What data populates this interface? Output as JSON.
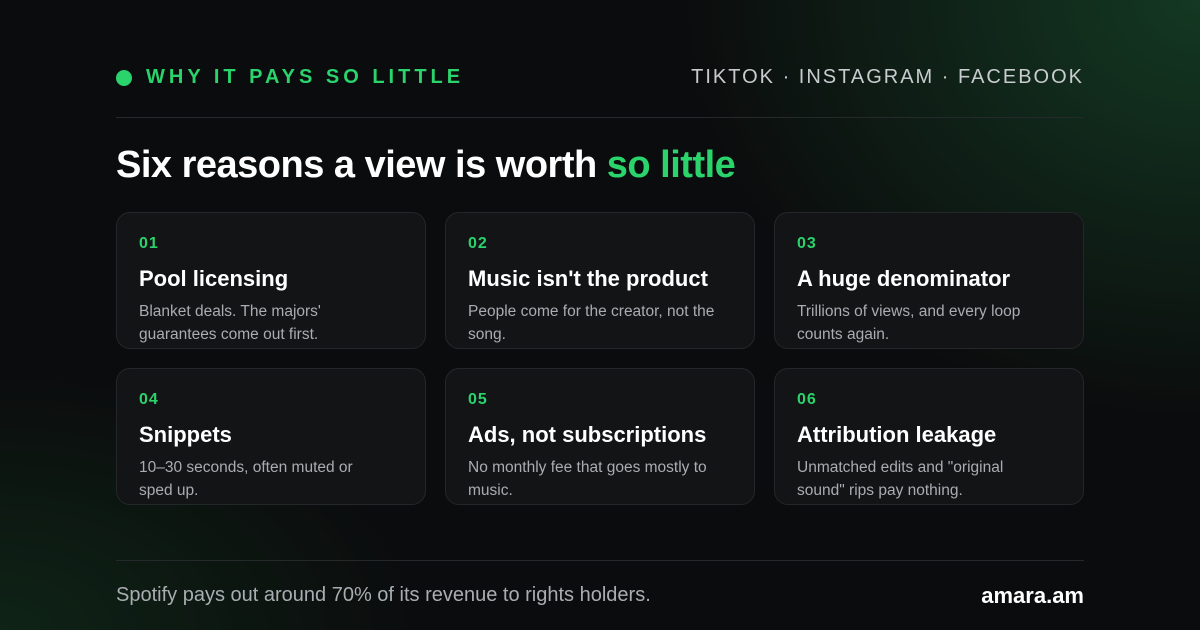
{
  "header": {
    "kicker": "WHY IT PAYS SO LITTLE",
    "platforms": "TIKTOK · INSTAGRAM · FACEBOOK"
  },
  "headline": {
    "main": "Six reasons a view is worth",
    "accent": "so little"
  },
  "cards": [
    {
      "number": "01",
      "title": "Pool licensing",
      "body": "Blanket deals. The majors' guarantees come out first."
    },
    {
      "number": "02",
      "title": "Music isn't the product",
      "body": "People come for the creator, not the song."
    },
    {
      "number": "03",
      "title": "A huge denominator",
      "body": "Trillions of views, and every loop counts again."
    },
    {
      "number": "04",
      "title": "Snippets",
      "body": "10–30 seconds, often muted or sped up."
    },
    {
      "number": "05",
      "title": "Ads, not subscriptions",
      "body": "No monthly fee that goes mostly to music."
    },
    {
      "number": "06",
      "title": "Attribution leakage",
      "body": "Unmatched edits and \"original sound\" rips pay nothing."
    }
  ],
  "footer": {
    "note": "Spotify pays out around 70% of its revenue to rights holders.",
    "brand": "amara.am"
  }
}
